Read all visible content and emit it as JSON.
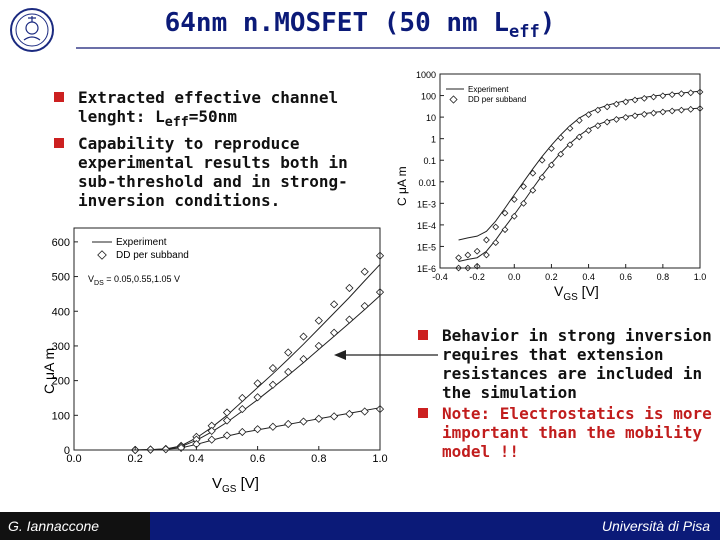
{
  "header": {
    "title": "64nm n.MOSFET (50 nm L",
    "title_sub": "eff",
    "title_end": ")"
  },
  "left_bullets": [
    {
      "text": "Extracted effective channel lenght: L",
      "sub": "eff",
      "end": "=50nm"
    },
    {
      "text": "Capability to reproduce experimental results both in sub-threshold and in strong-inversion conditions."
    }
  ],
  "right_bullets": [
    {
      "text": "Behavior in strong inversion requires that extension resistances are included in the simulation",
      "style": "normal"
    },
    {
      "text": "Note: Electrostatics is more important than the mobility model !!",
      "style": "note"
    }
  ],
  "footer": {
    "author": "G. Iannaccone",
    "institution": "Università di Pisa"
  },
  "chart_data": [
    {
      "type": "line",
      "name": "log-plot",
      "log_y": true,
      "xlim": [
        -0.4,
        1.0
      ],
      "ylim": [
        1e-06,
        1000
      ],
      "x_ticks": [
        "-0.4",
        "-0.2",
        "0.0",
        "0.2",
        "0.4",
        "0.6",
        "0.8",
        "1.0"
      ],
      "y_ticks": [
        "1E-6",
        "1E-5",
        "1E-4",
        "1E-3",
        "0.01",
        "0.1",
        "1",
        "10",
        "100",
        "1000"
      ],
      "xlabel": "V",
      "xlabel_sub": "GS",
      "xlabel_unit": " [V]",
      "ylabel": "C μA m",
      "legend": [
        {
          "label": "Experiment",
          "style": "line"
        },
        {
          "label": "DD per subband",
          "style": "marker"
        }
      ],
      "legend_position": "top-left",
      "x": [
        -0.3,
        -0.25,
        -0.2,
        -0.15,
        -0.1,
        -0.05,
        0.0,
        0.05,
        0.1,
        0.15,
        0.2,
        0.25,
        0.3,
        0.35,
        0.4,
        0.45,
        0.5,
        0.55,
        0.6,
        0.65,
        0.7,
        0.75,
        0.8,
        0.85,
        0.9,
        0.95,
        1.0
      ],
      "series": [
        {
          "values": [
            2e-05,
            2.5e-05,
            3e-05,
            5e-05,
            0.00015,
            0.0006,
            0.0025,
            0.01,
            0.04,
            0.15,
            0.5,
            1.5,
            4,
            9,
            16,
            25,
            35,
            46,
            58,
            70,
            82,
            95,
            108,
            120,
            132,
            145,
            160
          ]
        },
        {
          "values": [
            2e-06,
            2.5e-06,
            3e-06,
            6e-06,
            2e-05,
            8e-05,
            0.0003,
            0.0012,
            0.005,
            0.02,
            0.07,
            0.22,
            0.6,
            1.4,
            2.8,
            4.5,
            6.5,
            8.5,
            10.5,
            12.5,
            14.5,
            16.5,
            18.5,
            20.5,
            22.5,
            24.5,
            26
          ]
        },
        {
          "values": [
            3e-06,
            4e-06,
            6e-06,
            2e-05,
            8e-05,
            0.00035,
            0.0015,
            0.006,
            0.025,
            0.1,
            0.35,
            1.1,
            3,
            7,
            13,
            21,
            30,
            40,
            51,
            62,
            74,
            86,
            98,
            110,
            122,
            134,
            146
          ]
        },
        {
          "values": [
            4e-07,
            6e-07,
            1.2e-06,
            4e-06,
            1.5e-05,
            6e-05,
            0.00025,
            0.001,
            0.004,
            0.016,
            0.06,
            0.19,
            0.52,
            1.2,
            2.4,
            4.0,
            5.9,
            7.8,
            9.7,
            11.6,
            13.5,
            15.4,
            17.3,
            19.2,
            21.1,
            23.0,
            25
          ]
        }
      ]
    },
    {
      "type": "line",
      "name": "linear-plot",
      "xlim": [
        0.0,
        1.0
      ],
      "ylim": [
        0,
        640
      ],
      "x_ticks": [
        "0.0",
        "0.2",
        "0.4",
        "0.6",
        "0.8",
        "1.0"
      ],
      "y_ticks": [
        "0",
        "100",
        "200",
        "300",
        "400",
        "500",
        "600"
      ],
      "xlabel": "V",
      "xlabel_sub": "GS",
      "xlabel_unit": " [V]",
      "ylabel": "C μA m",
      "annotation": "V",
      "annotation_sub": "DS",
      "annotation_end": " = 0.05,0.55,1.05 V",
      "legend": [
        {
          "label": "Experiment",
          "style": "line"
        },
        {
          "label": "DD per subband",
          "style": "marker"
        }
      ],
      "legend_position": "top-left",
      "x": [
        0.2,
        0.25,
        0.3,
        0.35,
        0.4,
        0.45,
        0.5,
        0.55,
        0.6,
        0.65,
        0.7,
        0.75,
        0.8,
        0.85,
        0.9,
        0.95,
        1.0
      ],
      "series": [
        {
          "values": [
            0,
            1,
            3,
            12,
            35,
            65,
            100,
            140,
            180,
            220,
            262,
            305,
            350,
            395,
            440,
            488,
            535
          ]
        },
        {
          "values": [
            0,
            1,
            3,
            10,
            28,
            52,
            80,
            112,
            145,
            180,
            215,
            252,
            290,
            328,
            366,
            405,
            445
          ]
        },
        {
          "values": [
            0,
            1,
            2,
            6,
            16,
            28,
            40,
            50,
            58,
            66,
            74,
            82,
            90,
            98,
            106,
            114,
            122
          ]
        },
        {
          "values": [
            0,
            1,
            3,
            12,
            38,
            70,
            108,
            150,
            192,
            236,
            281,
            327,
            373,
            420,
            467,
            514,
            560
          ]
        },
        {
          "values": [
            0,
            1,
            3,
            10,
            30,
            55,
            85,
            118,
            152,
            188,
            225,
            262,
            300,
            338,
            376,
            415,
            455
          ]
        },
        {
          "values": [
            0,
            1,
            2,
            6,
            17,
            30,
            42,
            52,
            60,
            67,
            75,
            82,
            90,
            97,
            104,
            111,
            118
          ]
        }
      ]
    }
  ]
}
